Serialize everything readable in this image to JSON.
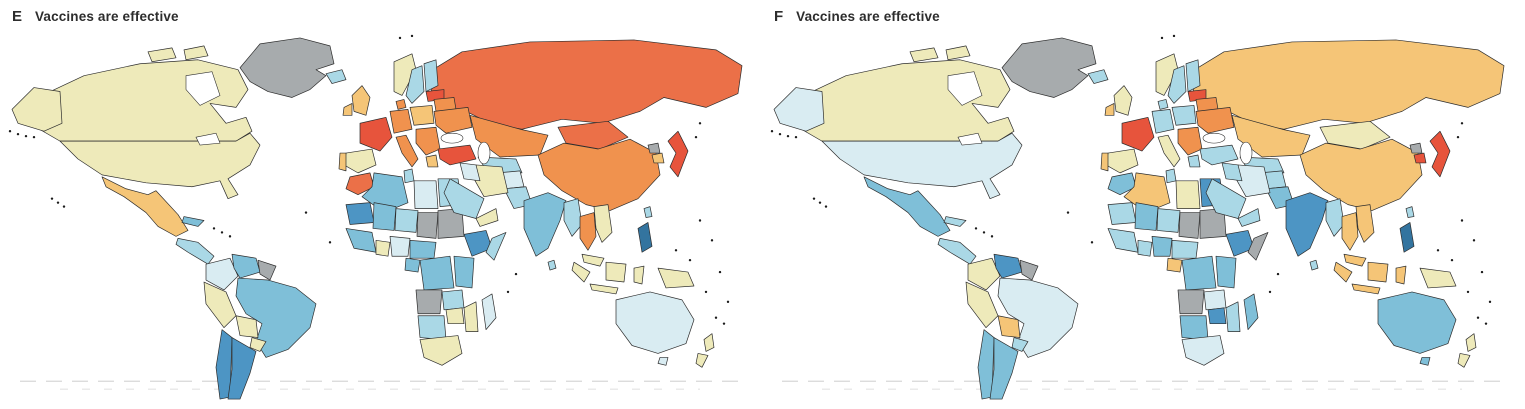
{
  "figure": {
    "palette": {
      "red": "#e7543c",
      "redOrange": "#eb7048",
      "orange": "#f0924e",
      "lightOrange": "#f5c577",
      "paleYellow": "#eeeaba",
      "paleBlue": "#d9ecf2",
      "lightBlue": "#aad8e6",
      "midBlue": "#7fbfd8",
      "darkBlue": "#4d95c4",
      "deepBlue": "#33749f",
      "gray": "#a7abad",
      "border": "#2d2d2d",
      "ocean": "#ffffff"
    },
    "panels": [
      {
        "label": "E",
        "title": "Vaccines are effective",
        "regions": {
          "russia": "redOrange",
          "kazakhstan": "orange",
          "central-asia": "lightBlue",
          "mongolia": "redOrange",
          "china": "orange",
          "greenland": "gray",
          "canada": "paleYellow",
          "arctic-island-1": "paleYellow",
          "arctic-island-2": "paleYellow",
          "alaska": "paleYellow",
          "usa": "paleYellow",
          "mexico": "lightOrange",
          "central-america": "lightBlue",
          "cuba": "midBlue",
          "colombia": "paleBlue",
          "venezuela": "midBlue",
          "guyanas": "gray",
          "brazil": "midBlue",
          "peru": "paleYellow",
          "bolivia": "paleYellow",
          "paraguay": "paleYellow",
          "chile": "darkBlue",
          "argentina": "darkBlue",
          "iceland": "lightBlue",
          "norway": "paleYellow",
          "sweden": "lightBlue",
          "finland": "lightBlue",
          "baltics": "red",
          "belarus": "orange",
          "ukraine": "orange",
          "poland": "lightOrange",
          "germany": "orange",
          "denmark": "orange",
          "uk": "lightOrange",
          "ireland": "lightOrange",
          "france": "red",
          "spain": "paleYellow",
          "portugal": "lightOrange",
          "italy": "orange",
          "balkans": "orange",
          "greece": "lightOrange",
          "turkey": "red",
          "morocco": "redOrange",
          "algeria": "midBlue",
          "tunisia": "lightBlue",
          "libya": "paleBlue",
          "egypt": "lightBlue",
          "mauritania": "darkBlue",
          "mali": "midBlue",
          "niger": "lightBlue",
          "chad": "gray",
          "sudan": "gray",
          "ethiopia": "darkBlue",
          "somalia": "lightBlue",
          "west-africa": "midBlue",
          "ghana": "paleYellow",
          "nigeria": "paleBlue",
          "cameroon-car": "midBlue",
          "gabon": "midBlue",
          "drc": "midBlue",
          "east-africa": "midBlue",
          "angola": "gray",
          "zambia": "lightBlue",
          "zimbabwe": "paleYellow",
          "mozambique": "paleYellow",
          "namibia-botswana": "lightBlue",
          "south-africa": "paleYellow",
          "madagascar": "paleBlue",
          "afghanistan": "paleBlue",
          "pakistan": "lightBlue",
          "iran": "paleYellow",
          "iraq": "paleBlue",
          "saudi": "lightBlue",
          "yemen-oman": "paleYellow",
          "india": "midBlue",
          "sri-lanka": "lightBlue",
          "myanmar": "lightBlue",
          "thailand": "orange",
          "vietnam": "paleYellow",
          "malaysia": "paleYellow",
          "sumatra": "paleYellow",
          "java": "paleYellow",
          "borneo": "paleYellow",
          "sulawesi": "paleYellow",
          "new-guinea": "paleYellow",
          "philippines": "deepBlue",
          "taiwan": "lightBlue",
          "japan": "red",
          "n-korea": "gray",
          "s-korea": "lightOrange",
          "australia": "paleBlue",
          "tasmania": "paleBlue",
          "nz-north": "paleYellow",
          "nz-south": "paleYellow"
        }
      },
      {
        "label": "F",
        "title": "Vaccines are effective",
        "regions": {
          "russia": "lightOrange",
          "kazakhstan": "lightOrange",
          "central-asia": "lightBlue",
          "mongolia": "paleYellow",
          "china": "lightOrange",
          "greenland": "gray",
          "canada": "paleYellow",
          "arctic-island-1": "paleYellow",
          "arctic-island-2": "paleYellow",
          "alaska": "paleBlue",
          "usa": "paleBlue",
          "mexico": "midBlue",
          "central-america": "lightBlue",
          "cuba": "lightBlue",
          "colombia": "paleYellow",
          "venezuela": "darkBlue",
          "guyanas": "gray",
          "brazil": "paleBlue",
          "peru": "paleYellow",
          "bolivia": "lightOrange",
          "paraguay": "lightBlue",
          "chile": "midBlue",
          "argentina": "midBlue",
          "iceland": "lightBlue",
          "norway": "paleYellow",
          "sweden": "lightBlue",
          "finland": "lightBlue",
          "baltics": "red",
          "belarus": "orange",
          "ukraine": "orange",
          "poland": "lightBlue",
          "germany": "lightBlue",
          "denmark": "lightBlue",
          "uk": "paleYellow",
          "ireland": "lightOrange",
          "france": "red",
          "spain": "paleYellow",
          "portugal": "lightOrange",
          "italy": "paleYellow",
          "balkans": "orange",
          "greece": "lightBlue",
          "turkey": "lightBlue",
          "morocco": "midBlue",
          "algeria": "lightOrange",
          "tunisia": "lightBlue",
          "libya": "paleYellow",
          "egypt": "darkBlue",
          "mauritania": "lightBlue",
          "mali": "midBlue",
          "niger": "lightBlue",
          "chad": "gray",
          "sudan": "gray",
          "ethiopia": "darkBlue",
          "somalia": "gray",
          "west-africa": "lightBlue",
          "ghana": "lightBlue",
          "nigeria": "midBlue",
          "cameroon-car": "lightBlue",
          "gabon": "lightOrange",
          "drc": "midBlue",
          "east-africa": "midBlue",
          "angola": "gray",
          "zambia": "paleBlue",
          "zimbabwe": "darkBlue",
          "mozambique": "lightBlue",
          "namibia-botswana": "midBlue",
          "south-africa": "paleBlue",
          "madagascar": "midBlue",
          "afghanistan": "lightBlue",
          "pakistan": "midBlue",
          "iran": "paleBlue",
          "iraq": "lightBlue",
          "saudi": "lightBlue",
          "yemen-oman": "lightBlue",
          "india": "darkBlue",
          "sri-lanka": "lightBlue",
          "myanmar": "lightBlue",
          "thailand": "lightOrange",
          "vietnam": "lightOrange",
          "malaysia": "lightOrange",
          "sumatra": "lightOrange",
          "java": "lightOrange",
          "borneo": "lightOrange",
          "sulawesi": "lightOrange",
          "new-guinea": "paleYellow",
          "philippines": "deepBlue",
          "taiwan": "lightBlue",
          "japan": "red",
          "n-korea": "gray",
          "s-korea": "red",
          "australia": "midBlue",
          "tasmania": "midBlue",
          "nz-north": "paleYellow",
          "nz-south": "paleYellow"
        }
      }
    ]
  }
}
